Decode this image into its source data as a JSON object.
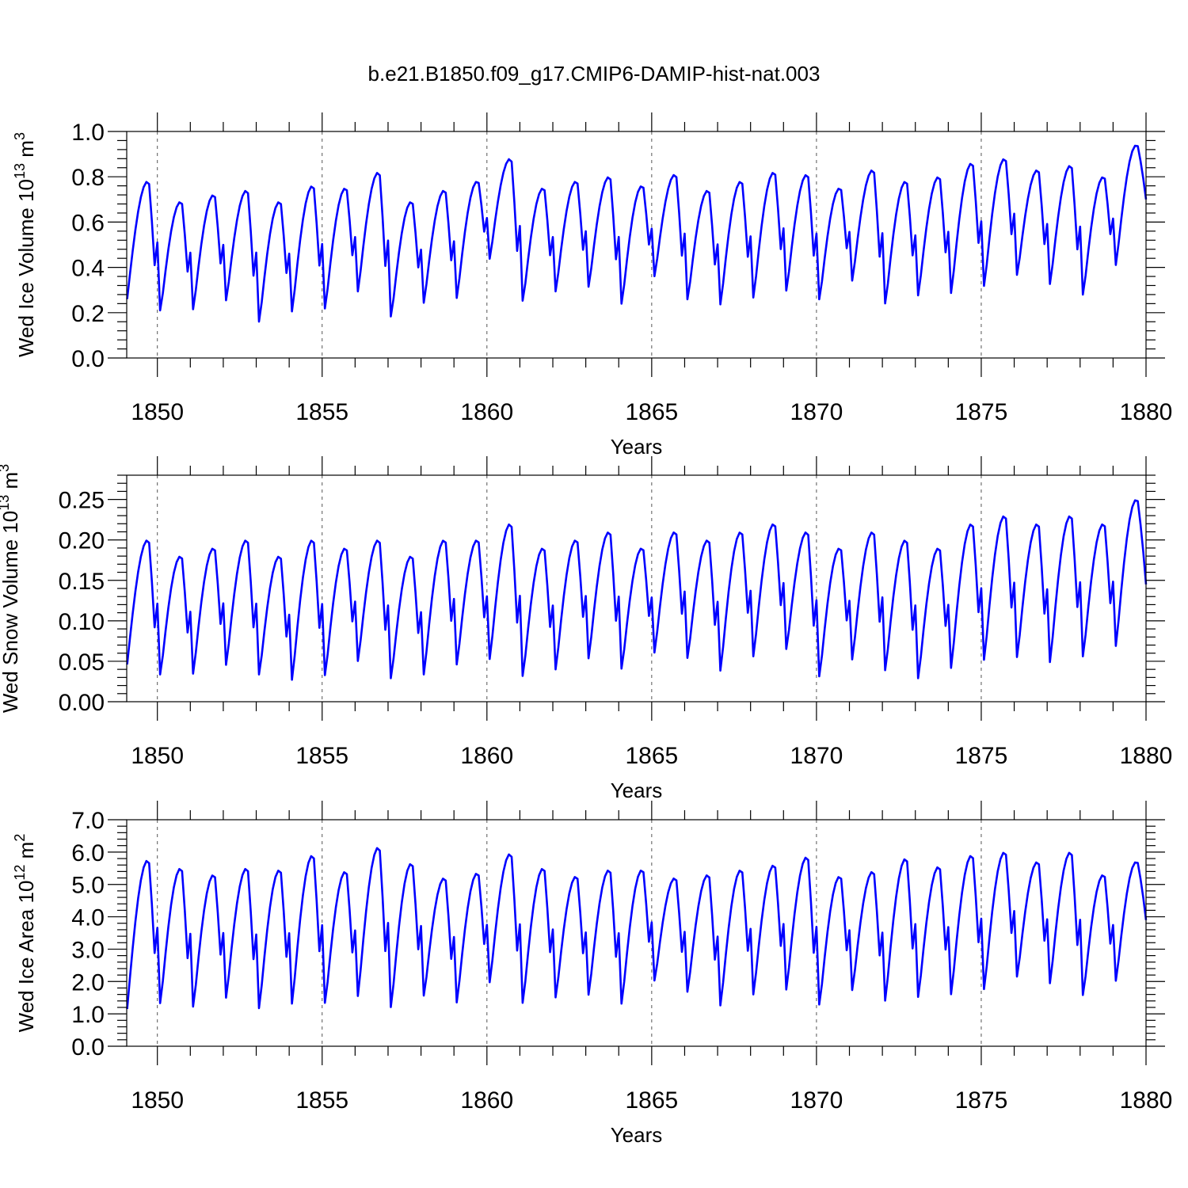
{
  "title": "b.e21.B1850.f09_g17.CMIP6-DAMIP-hist-nat.003",
  "colors": {
    "series": "#0000ff",
    "frame": "#000000",
    "grid": "#555555"
  },
  "chart_data": [
    {
      "type": "line",
      "ylabel": {
        "base": "Wed Ice Volume 10",
        "exp": "13",
        "unit": " m",
        "unit_exp": "3"
      },
      "xlabel": "Years",
      "xlim": [
        1849.07,
        1880.0
      ],
      "ylim": [
        0.0,
        1.0
      ],
      "x_ticks": [
        1850,
        1855,
        1860,
        1865,
        1870,
        1875,
        1880
      ],
      "x_tick_labels": [
        "1850",
        "1855",
        "1860",
        "1865",
        "1870",
        "1875",
        "1880"
      ],
      "y_ticks": [
        0.0,
        0.2,
        0.4,
        0.6,
        0.8,
        1.0
      ],
      "y_tick_labels": [
        "0.0",
        "0.2",
        "0.4",
        "0.6",
        "0.8",
        "1.0"
      ],
      "vgrid_dashed": [
        1850,
        1855,
        1860,
        1865,
        1870,
        1875
      ],
      "series": [
        {
          "start_year": 1849.0,
          "peaks": [
            0.78,
            0.69,
            0.72,
            0.74,
            0.69,
            0.76,
            0.75,
            0.82,
            0.69,
            0.74,
            0.78,
            0.88,
            0.75,
            0.78,
            0.8,
            0.76,
            0.81,
            0.74,
            0.78,
            0.82,
            0.81,
            0.75,
            0.83,
            0.78,
            0.8,
            0.86,
            0.88,
            0.83,
            0.85,
            0.8,
            0.94
          ],
          "troughs": [
            0.26,
            0.18,
            0.19,
            0.23,
            0.13,
            0.18,
            0.19,
            0.27,
            0.15,
            0.22,
            0.24,
            0.42,
            0.22,
            0.27,
            0.29,
            0.21,
            0.34,
            0.23,
            0.21,
            0.24,
            0.27,
            0.23,
            0.32,
            0.21,
            0.25,
            0.26,
            0.29,
            0.34,
            0.3,
            0.25,
            0.39
          ],
          "end": 0.7
        }
      ]
    },
    {
      "type": "line",
      "ylabel": {
        "base": "Wed Snow Volume 10",
        "exp": "13",
        "unit": " m",
        "unit_exp": "3"
      },
      "xlabel": "Years",
      "xlim": [
        1849.07,
        1880.0
      ],
      "ylim": [
        0.0,
        0.28
      ],
      "x_ticks": [
        1850,
        1855,
        1860,
        1865,
        1870,
        1875,
        1880
      ],
      "x_tick_labels": [
        "1850",
        "1855",
        "1860",
        "1865",
        "1870",
        "1875",
        "1880"
      ],
      "y_ticks": [
        0.0,
        0.05,
        0.1,
        0.15,
        0.2,
        0.25
      ],
      "y_tick_labels": [
        "0.00",
        "0.05",
        "0.10",
        "0.15",
        "0.20",
        "0.25"
      ],
      "vgrid_dashed": [
        1850,
        1855,
        1860,
        1865,
        1870,
        1875
      ],
      "series": [
        {
          "start_year": 1849.0,
          "peaks": [
            0.2,
            0.18,
            0.19,
            0.2,
            0.18,
            0.2,
            0.19,
            0.2,
            0.18,
            0.2,
            0.2,
            0.22,
            0.19,
            0.2,
            0.21,
            0.19,
            0.21,
            0.2,
            0.21,
            0.22,
            0.21,
            0.19,
            0.21,
            0.2,
            0.19,
            0.22,
            0.23,
            0.22,
            0.23,
            0.22,
            0.25
          ],
          "troughs": [
            0.046,
            0.025,
            0.027,
            0.038,
            0.025,
            0.019,
            0.024,
            0.043,
            0.02,
            0.026,
            0.038,
            0.045,
            0.022,
            0.032,
            0.046,
            0.032,
            0.054,
            0.046,
            0.03,
            0.048,
            0.057,
            0.022,
            0.045,
            0.03,
            0.02,
            0.034,
            0.043,
            0.046,
            0.04,
            0.047,
            0.061
          ],
          "end": 0.145
        }
      ]
    },
    {
      "type": "line",
      "ylabel": {
        "base": "Wed Ice Area 10",
        "exp": "12",
        "unit": " m",
        "unit_exp": "2"
      },
      "xlabel": "Years",
      "xlim": [
        1849.07,
        1880.0
      ],
      "ylim": [
        0.0,
        7.0
      ],
      "x_ticks": [
        1850,
        1855,
        1860,
        1865,
        1870,
        1875,
        1880
      ],
      "x_tick_labels": [
        "1850",
        "1855",
        "1860",
        "1865",
        "1870",
        "1875",
        "1880"
      ],
      "y_ticks": [
        0.0,
        1.0,
        2.0,
        3.0,
        4.0,
        5.0,
        6.0,
        7.0
      ],
      "y_tick_labels": [
        "0.0",
        "1.0",
        "2.0",
        "3.0",
        "4.0",
        "5.0",
        "6.0",
        "7.0"
      ],
      "vgrid_dashed": [
        1850,
        1855,
        1860,
        1865,
        1870,
        1875
      ],
      "series": [
        {
          "start_year": 1849.0,
          "peaks": [
            5.75,
            5.5,
            5.3,
            5.5,
            5.45,
            5.9,
            5.4,
            6.15,
            5.65,
            5.2,
            5.35,
            5.95,
            5.5,
            5.25,
            5.45,
            5.45,
            5.2,
            5.3,
            5.45,
            5.6,
            5.85,
            5.25,
            5.4,
            5.8,
            5.55,
            5.9,
            6.0,
            5.7,
            6.0,
            5.3,
            5.7
          ],
          "troughs": [
            1.15,
            1.1,
            1.0,
            1.3,
            0.95,
            1.1,
            1.1,
            1.35,
            0.95,
            1.35,
            1.15,
            1.8,
            1.1,
            1.3,
            1.4,
            1.1,
            1.85,
            1.5,
            1.05,
            1.4,
            1.55,
            1.05,
            1.55,
            1.2,
            1.3,
            1.4,
            1.55,
            1.95,
            1.75,
            1.35,
            1.85
          ],
          "end": 3.9
        }
      ]
    }
  ]
}
